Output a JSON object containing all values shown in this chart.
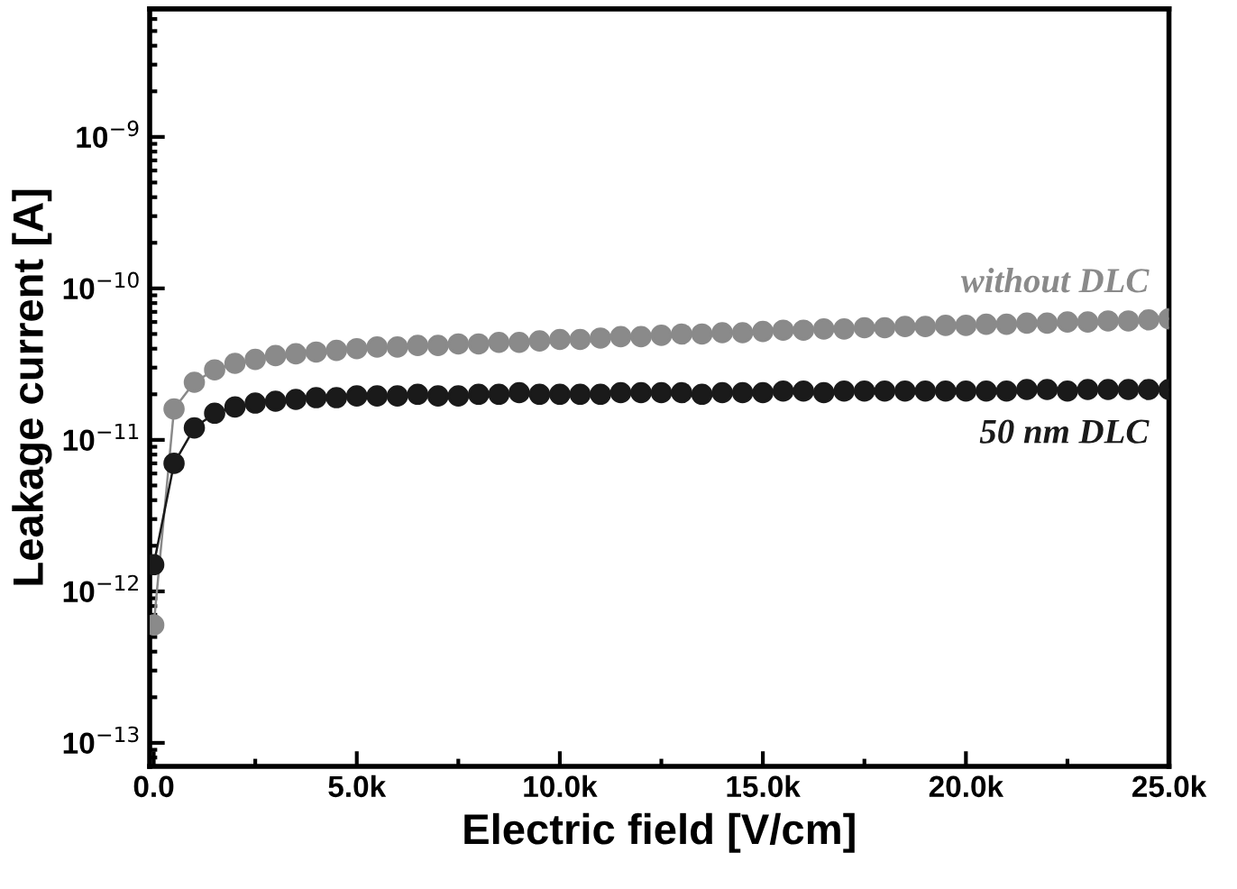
{
  "chart_data": {
    "type": "line",
    "xlabel": "Electric field [V/cm]",
    "ylabel": "Leakage current [A]",
    "x": [
      0,
      500,
      1000,
      1500,
      2000,
      2500,
      3000,
      3500,
      4000,
      4500,
      5000,
      5500,
      6000,
      6500,
      7000,
      7500,
      8000,
      8500,
      9000,
      9500,
      10000,
      10500,
      11000,
      11500,
      12000,
      12500,
      13000,
      13500,
      14000,
      14500,
      15000,
      15500,
      16000,
      16500,
      17000,
      17500,
      18000,
      18500,
      19000,
      19500,
      20000,
      20500,
      21000,
      21500,
      22000,
      22500,
      23000,
      23500,
      24000,
      24500,
      25000
    ],
    "series": [
      {
        "name": "without DLC",
        "color": "#8a8a8a",
        "values": [
          6e-13,
          1.6e-11,
          2.4e-11,
          2.9e-11,
          3.2e-11,
          3.4e-11,
          3.6e-11,
          3.7e-11,
          3.8e-11,
          3.9e-11,
          4e-11,
          4.1e-11,
          4.1e-11,
          4.2e-11,
          4.2e-11,
          4.3e-11,
          4.3e-11,
          4.4e-11,
          4.4e-11,
          4.5e-11,
          4.6e-11,
          4.6e-11,
          4.7e-11,
          4.8e-11,
          4.8e-11,
          4.9e-11,
          5e-11,
          5e-11,
          5.1e-11,
          5.1e-11,
          5.2e-11,
          5.3e-11,
          5.3e-11,
          5.4e-11,
          5.4e-11,
          5.5e-11,
          5.5e-11,
          5.6e-11,
          5.6e-11,
          5.7e-11,
          5.7e-11,
          5.8e-11,
          5.8e-11,
          5.9e-11,
          5.9e-11,
          6e-11,
          6e-11,
          6.1e-11,
          6.1e-11,
          6.2e-11,
          6.3e-11
        ]
      },
      {
        "name": "50 nm DLC",
        "color": "#1a1a1a",
        "values": [
          1.5e-12,
          7e-12,
          1.2e-11,
          1.5e-11,
          1.65e-11,
          1.75e-11,
          1.8e-11,
          1.85e-11,
          1.9e-11,
          1.9e-11,
          1.95e-11,
          1.95e-11,
          1.95e-11,
          2e-11,
          1.95e-11,
          1.95e-11,
          2e-11,
          2e-11,
          2.05e-11,
          2e-11,
          2e-11,
          2e-11,
          2e-11,
          2.05e-11,
          2.05e-11,
          2.05e-11,
          2.05e-11,
          2e-11,
          2.05e-11,
          2.05e-11,
          2.05e-11,
          2.1e-11,
          2.1e-11,
          2.05e-11,
          2.1e-11,
          2.1e-11,
          2.1e-11,
          2.1e-11,
          2.1e-11,
          2.1e-11,
          2.1e-11,
          2.1e-11,
          2.1e-11,
          2.15e-11,
          2.15e-11,
          2.1e-11,
          2.15e-11,
          2.15e-11,
          2.15e-11,
          2.15e-11,
          2.15e-11
        ]
      }
    ],
    "log": "y",
    "xlim": [
      -100,
      25000
    ],
    "ylim": [
      7e-14,
      7e-09
    ],
    "xticks": [
      {
        "value": 0,
        "label": "0.0"
      },
      {
        "value": 5000,
        "label": "5.0k"
      },
      {
        "value": 10000,
        "label": "10.0k"
      },
      {
        "value": 15000,
        "label": "15.0k"
      },
      {
        "value": 20000,
        "label": "20.0k"
      },
      {
        "value": 25000,
        "label": "25.0k"
      }
    ],
    "yticks": [
      {
        "value": 1e-13,
        "label": "10$^{−13}$"
      },
      {
        "value": 1e-12,
        "label": "10$^{−12}$"
      },
      {
        "value": 1e-11,
        "label": "10$^{−11}$"
      },
      {
        "value": 1e-10,
        "label": "10$^{−10}$"
      },
      {
        "value": 1e-09,
        "label": "10$^{−9}$"
      }
    ],
    "marker": "circle",
    "line_style": "solid",
    "grid": false,
    "legend": false
  }
}
